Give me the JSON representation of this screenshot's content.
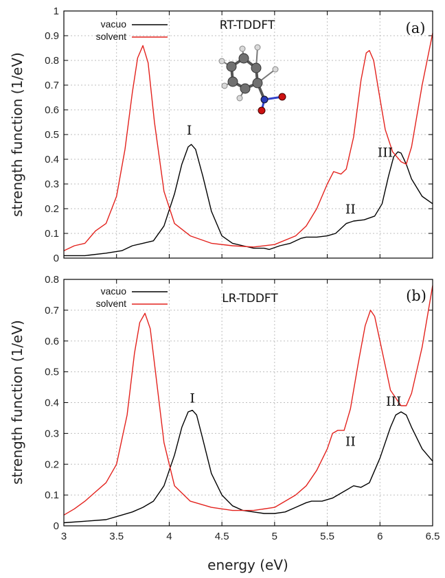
{
  "figure": {
    "xlabel": "energy (eV)",
    "ylabel": "strength function (1/eV)"
  },
  "colors": {
    "vacuo": "#000000",
    "solvent": "#e3211c"
  },
  "molecule_icon": "nitrobenzene-ball-and-stick",
  "chart_data": [
    {
      "type": "line",
      "panel_label": "(a)",
      "method": "RT-TDDFT",
      "xlabel": "",
      "ylabel": "strength function (1/eV)",
      "xlim": [
        3,
        6.5
      ],
      "ylim": [
        0,
        1
      ],
      "xticks": [
        "3",
        "3.5",
        "4",
        "4.5",
        "5",
        "5.5",
        "6",
        "6.5"
      ],
      "yticks": [
        "0",
        "0.1",
        "0.2",
        "0.3",
        "0.4",
        "0.5",
        "0.6",
        "0.7",
        "0.8",
        "0.9",
        "1"
      ],
      "grid": true,
      "legend_position": "top-left",
      "annotations": [
        {
          "text": "I",
          "x": 4.19,
          "y": 0.5
        },
        {
          "text": "II",
          "x": 5.72,
          "y": 0.18
        },
        {
          "text": "III",
          "x": 6.05,
          "y": 0.41
        }
      ],
      "series": [
        {
          "name": "vacuo",
          "x": [
            3.0,
            3.2,
            3.4,
            3.55,
            3.65,
            3.75,
            3.85,
            3.95,
            4.05,
            4.12,
            4.18,
            4.21,
            4.25,
            4.32,
            4.4,
            4.5,
            4.6,
            4.7,
            4.8,
            4.9,
            4.95,
            5.05,
            5.15,
            5.25,
            5.3,
            5.4,
            5.5,
            5.58,
            5.68,
            5.75,
            5.85,
            5.95,
            6.02,
            6.08,
            6.13,
            6.17,
            6.2,
            6.25,
            6.3,
            6.4,
            6.5
          ],
          "y": [
            0.01,
            0.01,
            0.02,
            0.03,
            0.05,
            0.06,
            0.07,
            0.13,
            0.26,
            0.38,
            0.45,
            0.46,
            0.44,
            0.33,
            0.19,
            0.09,
            0.06,
            0.05,
            0.04,
            0.04,
            0.035,
            0.05,
            0.06,
            0.08,
            0.085,
            0.085,
            0.09,
            0.1,
            0.14,
            0.15,
            0.155,
            0.17,
            0.22,
            0.33,
            0.41,
            0.43,
            0.425,
            0.38,
            0.32,
            0.25,
            0.22
          ]
        },
        {
          "name": "solvent",
          "x": [
            3.0,
            3.1,
            3.2,
            3.3,
            3.4,
            3.5,
            3.58,
            3.65,
            3.7,
            3.75,
            3.8,
            3.86,
            3.95,
            4.05,
            4.2,
            4.4,
            4.6,
            4.8,
            5.0,
            5.2,
            5.3,
            5.4,
            5.5,
            5.56,
            5.63,
            5.68,
            5.75,
            5.82,
            5.87,
            5.9,
            5.94,
            5.99,
            6.05,
            6.12,
            6.2,
            6.25,
            6.3,
            6.4,
            6.5
          ],
          "y": [
            0.03,
            0.05,
            0.06,
            0.11,
            0.14,
            0.25,
            0.44,
            0.67,
            0.81,
            0.86,
            0.79,
            0.55,
            0.27,
            0.14,
            0.09,
            0.06,
            0.05,
            0.045,
            0.055,
            0.09,
            0.13,
            0.2,
            0.3,
            0.35,
            0.34,
            0.36,
            0.49,
            0.72,
            0.83,
            0.84,
            0.8,
            0.67,
            0.52,
            0.43,
            0.39,
            0.38,
            0.45,
            0.7,
            0.91
          ]
        }
      ]
    },
    {
      "type": "line",
      "panel_label": "(b)",
      "method": "LR-TDDFT",
      "xlabel": "energy (eV)",
      "ylabel": "strength function (1/eV)",
      "xlim": [
        3,
        6.5
      ],
      "ylim": [
        0,
        0.8
      ],
      "xticks": [
        "3",
        "3.5",
        "4",
        "4.5",
        "5",
        "5.5",
        "6",
        "6.5"
      ],
      "yticks": [
        "0",
        "0.1",
        "0.2",
        "0.3",
        "0.4",
        "0.5",
        "0.6",
        "0.7",
        "0.8"
      ],
      "grid": true,
      "legend_position": "top-left",
      "annotations": [
        {
          "text": "I",
          "x": 4.22,
          "y": 0.4
        },
        {
          "text": "II",
          "x": 5.72,
          "y": 0.26
        },
        {
          "text": "III",
          "x": 6.13,
          "y": 0.39
        }
      ],
      "series": [
        {
          "name": "vacuo",
          "x": [
            3.0,
            3.2,
            3.4,
            3.55,
            3.65,
            3.75,
            3.85,
            3.95,
            4.05,
            4.12,
            4.18,
            4.22,
            4.26,
            4.32,
            4.4,
            4.5,
            4.6,
            4.7,
            4.8,
            4.9,
            5.0,
            5.1,
            5.2,
            5.3,
            5.35,
            5.45,
            5.55,
            5.65,
            5.75,
            5.82,
            5.9,
            6.0,
            6.1,
            6.15,
            6.2,
            6.25,
            6.3,
            6.4,
            6.5
          ],
          "y": [
            0.01,
            0.015,
            0.02,
            0.035,
            0.045,
            0.06,
            0.08,
            0.13,
            0.23,
            0.32,
            0.37,
            0.375,
            0.36,
            0.28,
            0.17,
            0.1,
            0.065,
            0.05,
            0.045,
            0.04,
            0.04,
            0.045,
            0.06,
            0.075,
            0.08,
            0.08,
            0.09,
            0.11,
            0.13,
            0.125,
            0.14,
            0.22,
            0.32,
            0.36,
            0.37,
            0.36,
            0.32,
            0.25,
            0.21
          ]
        },
        {
          "name": "solvent",
          "x": [
            3.0,
            3.1,
            3.2,
            3.3,
            3.4,
            3.5,
            3.6,
            3.67,
            3.72,
            3.77,
            3.82,
            3.88,
            3.95,
            4.05,
            4.2,
            4.4,
            4.6,
            4.8,
            5.0,
            5.2,
            5.3,
            5.4,
            5.5,
            5.55,
            5.6,
            5.66,
            5.72,
            5.8,
            5.86,
            5.91,
            5.95,
            6.0,
            6.05,
            6.1,
            6.2,
            6.25,
            6.3,
            6.4,
            6.5
          ],
          "y": [
            0.035,
            0.055,
            0.08,
            0.11,
            0.14,
            0.2,
            0.36,
            0.56,
            0.66,
            0.69,
            0.64,
            0.47,
            0.27,
            0.13,
            0.08,
            0.06,
            0.05,
            0.05,
            0.06,
            0.1,
            0.13,
            0.18,
            0.25,
            0.3,
            0.31,
            0.31,
            0.38,
            0.54,
            0.65,
            0.7,
            0.68,
            0.6,
            0.52,
            0.44,
            0.39,
            0.39,
            0.43,
            0.58,
            0.78
          ]
        }
      ]
    }
  ]
}
